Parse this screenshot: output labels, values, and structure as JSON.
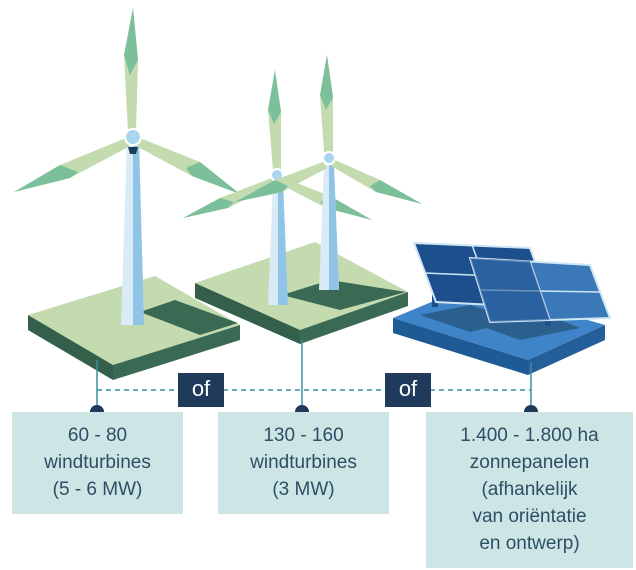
{
  "separators": {
    "first": "of",
    "second": "of"
  },
  "options": [
    {
      "lines": [
        "60 - 80",
        "windturbines",
        "(5 - 6 MW)"
      ]
    },
    {
      "lines": [
        "130 - 160",
        "windturbines",
        "(3 MW)"
      ]
    },
    {
      "lines": [
        "1.400 - 1.800 ha",
        "zonnepanelen",
        "(afhankelijk",
        "van oriëntatie",
        "en ontwerp)"
      ]
    }
  ],
  "colors": {
    "ground_light": "#c3dbae",
    "ground_dark": "#3a6a54",
    "solar_base": "#3f84c8",
    "solar_base_dark": "#1e5a93",
    "panel": "#1d4f8c",
    "label_box": "#cde6e5",
    "label_text": "#2d4f66",
    "separator_box": "#1f3a5a",
    "dashed_line": "#3b8fa1"
  }
}
